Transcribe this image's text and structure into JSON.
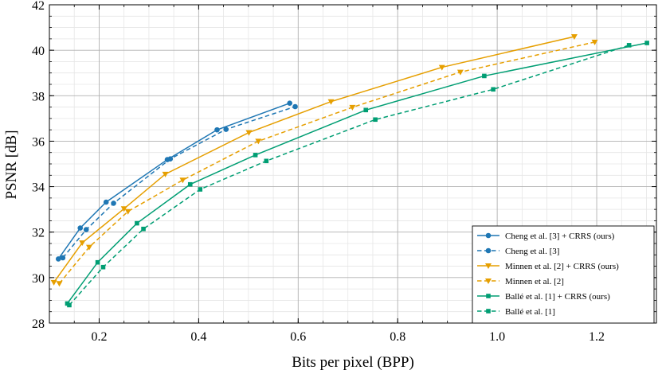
{
  "chart_data": {
    "type": "line",
    "title": "",
    "xlabel": "Bits per pixel (BPP)",
    "ylabel": "PSNR [dB]",
    "xlim": [
      0.1,
      1.32
    ],
    "ylim": [
      28,
      42
    ],
    "xticks": [
      0.2,
      0.4,
      0.6,
      0.8,
      1.0,
      1.2
    ],
    "xtick_labels": [
      "0.2",
      "0.4",
      "0.6",
      "0.8",
      "1.0",
      "1.2"
    ],
    "yticks": [
      28,
      30,
      32,
      34,
      36,
      38,
      40,
      42
    ],
    "ytick_labels": [
      "28",
      "30",
      "32",
      "34",
      "36",
      "38",
      "40",
      "42"
    ],
    "grid": true,
    "legend_position": "lower-right",
    "series": [
      {
        "name": "Cheng et al. [3] + CRRS (ours)",
        "color": "#1f77b4",
        "dash": "solid",
        "marker": "circle",
        "x": [
          0.118,
          0.162,
          0.214,
          0.337,
          0.437,
          0.583
        ],
        "y": [
          30.82,
          32.18,
          33.32,
          35.19,
          36.5,
          37.67
        ]
      },
      {
        "name": "Cheng et al. [3]",
        "color": "#1f77b4",
        "dash": "dashed",
        "marker": "circle",
        "x": [
          0.127,
          0.174,
          0.229,
          0.343,
          0.455,
          0.594
        ],
        "y": [
          30.87,
          32.11,
          33.27,
          35.22,
          36.52,
          37.52
        ]
      },
      {
        "name": "Minnen et al. [2] + CRRS (ours)",
        "color": "#e69f00",
        "dash": "solid",
        "marker": "triangle-down",
        "x": [
          0.109,
          0.166,
          0.25,
          0.333,
          0.501,
          0.666,
          0.889,
          1.155
        ],
        "y": [
          29.79,
          31.53,
          33.03,
          34.55,
          36.38,
          37.74,
          39.25,
          40.6
        ]
      },
      {
        "name": "Minnen et al. [2]",
        "color": "#e69f00",
        "dash": "dashed",
        "marker": "triangle-down",
        "x": [
          0.12,
          0.18,
          0.258,
          0.368,
          0.52,
          0.709,
          0.926,
          1.196
        ],
        "y": [
          29.74,
          31.34,
          32.91,
          34.29,
          36.0,
          37.49,
          39.04,
          40.36
        ]
      },
      {
        "name": "Ballé et al. [1] + CRRS (ours)",
        "color": "#009e73",
        "dash": "solid",
        "marker": "square",
        "x": [
          0.136,
          0.197,
          0.276,
          0.383,
          0.514,
          0.736,
          0.974,
          1.301
        ],
        "y": [
          28.86,
          30.67,
          32.39,
          34.1,
          35.39,
          37.37,
          38.87,
          40.32
        ]
      },
      {
        "name": "Ballé et al. [1]",
        "color": "#009e73",
        "dash": "dashed",
        "marker": "square",
        "x": [
          0.14,
          0.208,
          0.289,
          0.403,
          0.536,
          0.755,
          0.992,
          1.265
        ],
        "y": [
          28.79,
          30.46,
          32.14,
          33.88,
          35.13,
          36.95,
          38.28,
          40.22
        ]
      }
    ]
  }
}
